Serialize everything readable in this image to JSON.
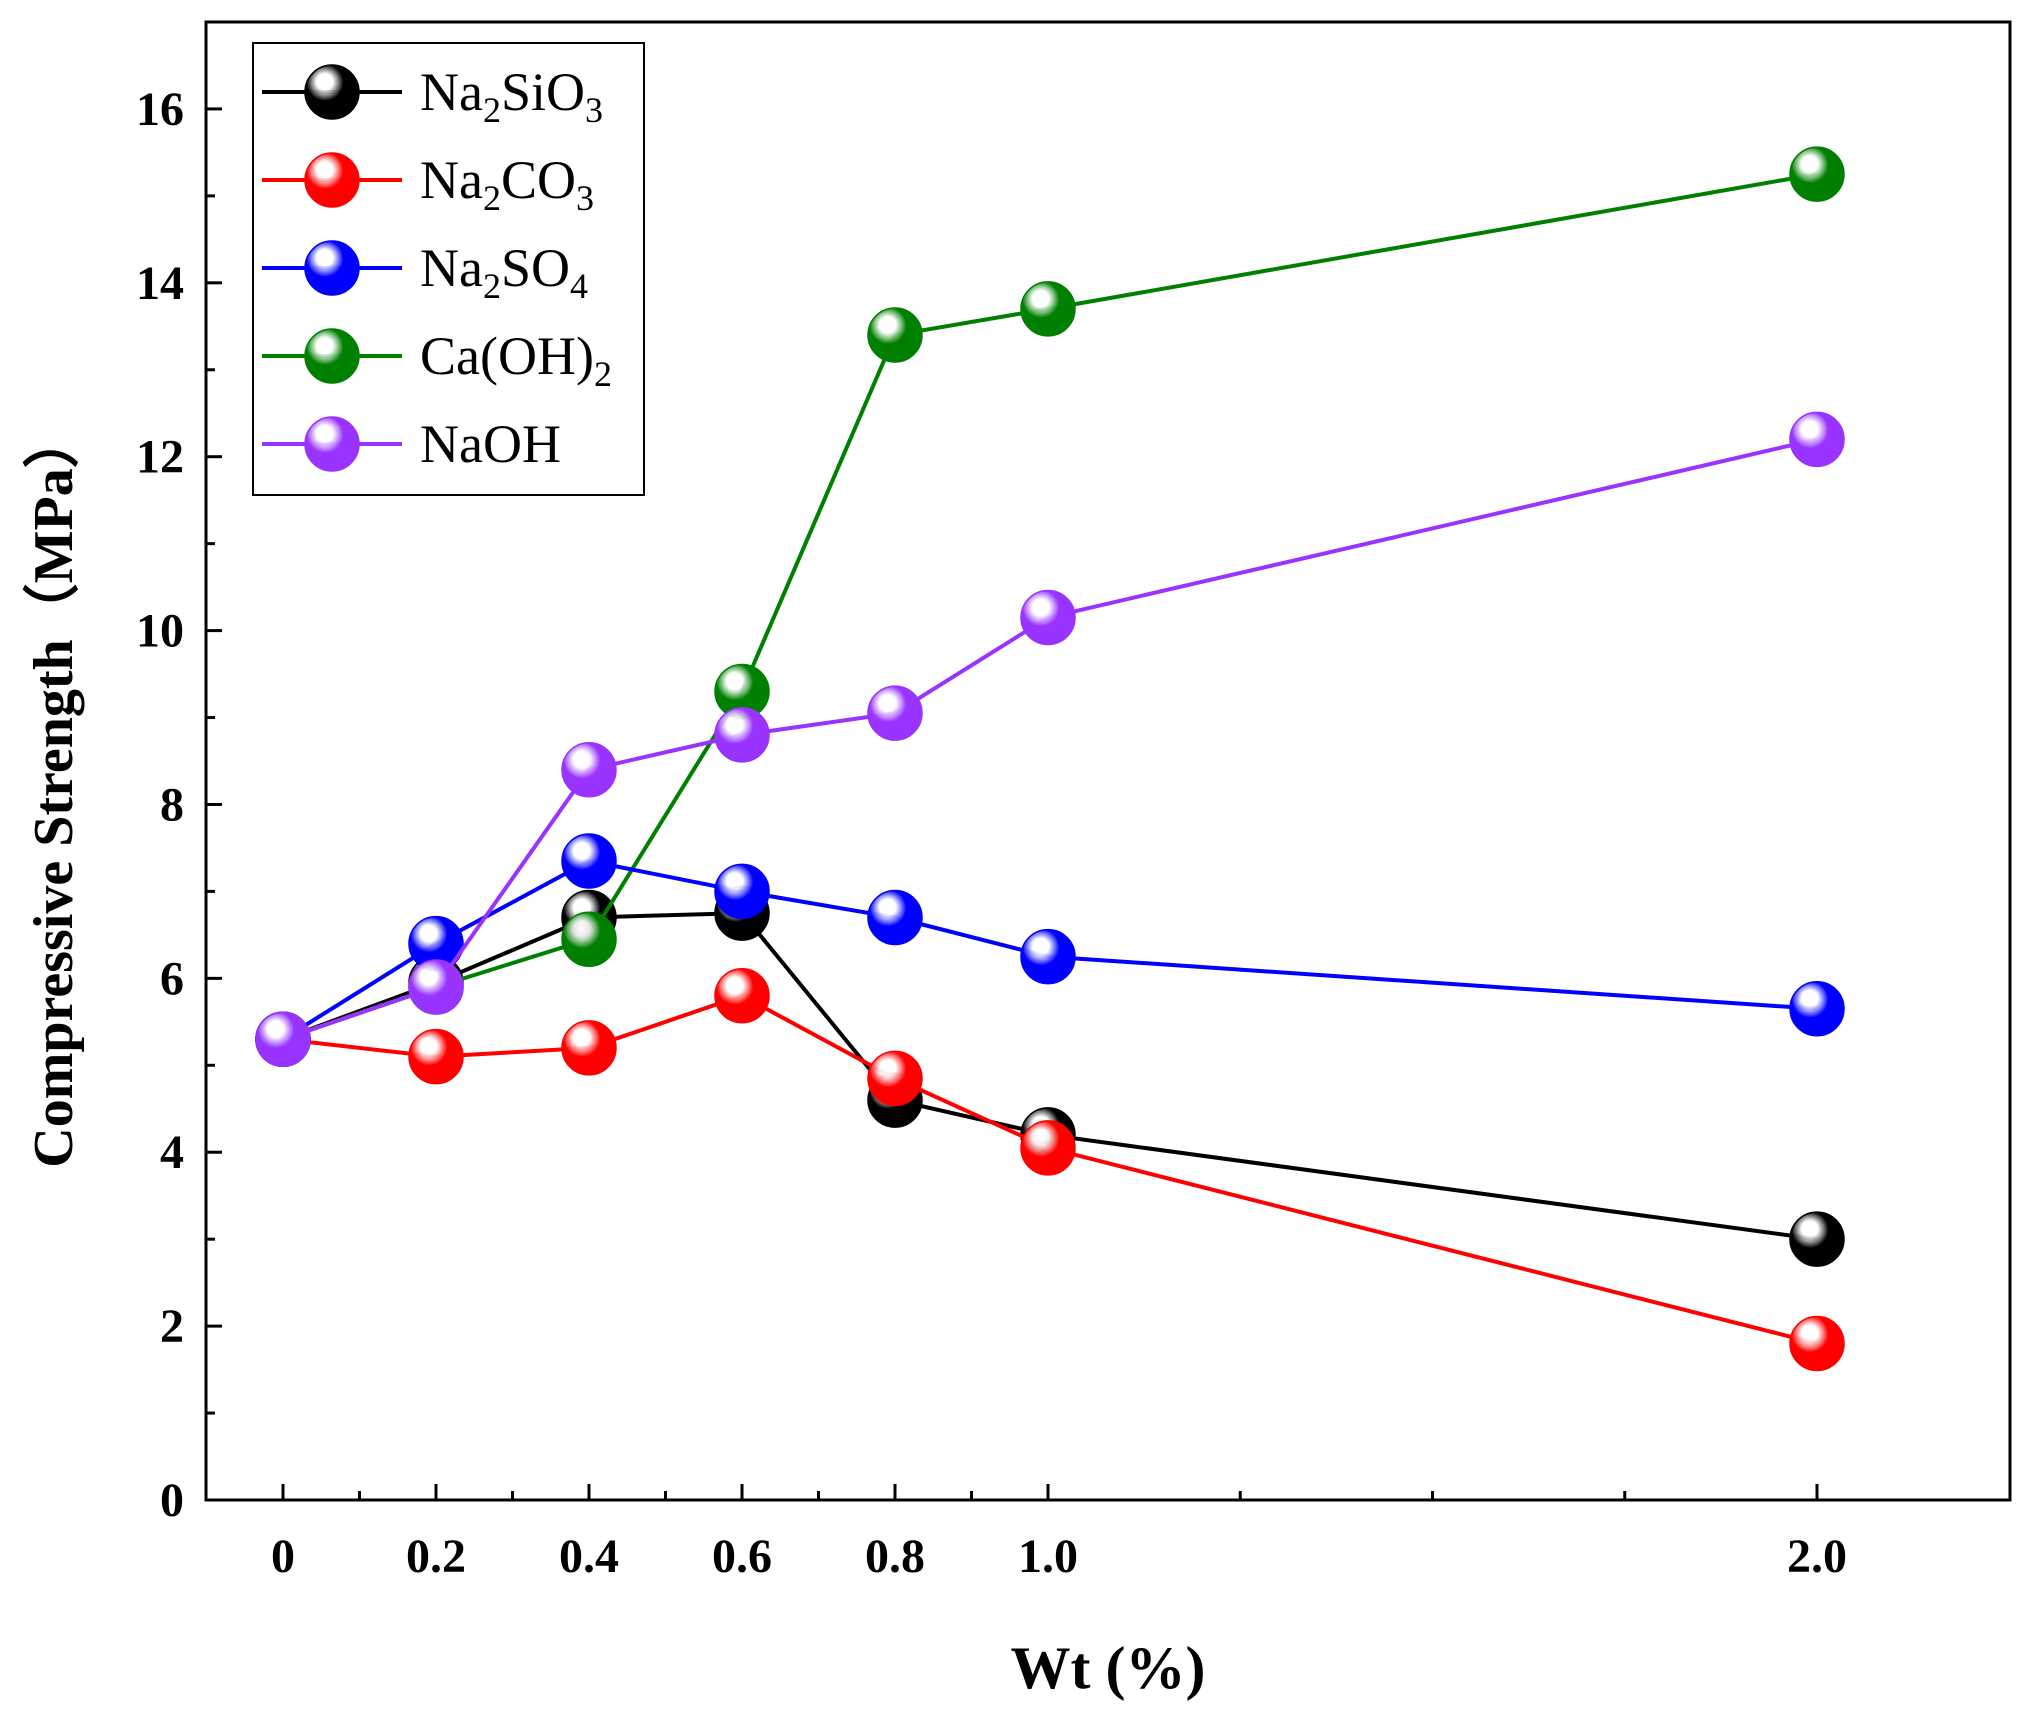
{
  "chart_data": {
    "type": "line",
    "title": "",
    "xlabel": "Wt (%)",
    "ylabel": "Compressive Strength（MPa）",
    "x_tick_labels": [
      "0",
      "0.2",
      "0.4",
      "0.6",
      "0.8",
      "1.0",
      "2.0"
    ],
    "y_ticks": [
      0,
      2,
      4,
      6,
      8,
      10,
      12,
      14,
      16
    ],
    "ylim": [
      0,
      17
    ],
    "legend_position": "top-left",
    "series": [
      {
        "name": "Na₂SiO₃",
        "formula": {
          "parts": [
            {
              "t": "Na"
            },
            {
              "t": "2",
              "sub": true
            },
            {
              "t": "SiO"
            },
            {
              "t": "3",
              "sub": true
            }
          ]
        },
        "color": "#000000",
        "x": [
          0,
          0.2,
          0.4,
          0.6,
          0.8,
          1.0,
          2.0
        ],
        "y": [
          5.3,
          5.95,
          6.7,
          6.75,
          4.6,
          4.2,
          3.0
        ]
      },
      {
        "name": "Na₂CO₃",
        "formula": {
          "parts": [
            {
              "t": "Na"
            },
            {
              "t": "2",
              "sub": true
            },
            {
              "t": "CO"
            },
            {
              "t": "3",
              "sub": true
            }
          ]
        },
        "color": "#ff0000",
        "x": [
          0,
          0.2,
          0.4,
          0.6,
          0.8,
          1.0,
          2.0
        ],
        "y": [
          5.3,
          5.1,
          5.2,
          5.8,
          4.85,
          4.05,
          1.8
        ]
      },
      {
        "name": "Na₂SO₄",
        "formula": {
          "parts": [
            {
              "t": "Na"
            },
            {
              "t": "2",
              "sub": true
            },
            {
              "t": "SO"
            },
            {
              "t": "4",
              "sub": true
            }
          ]
        },
        "color": "#0000ff",
        "x": [
          0,
          0.2,
          0.4,
          0.6,
          0.8,
          1.0,
          2.0
        ],
        "y": [
          5.3,
          6.4,
          7.35,
          7.0,
          6.7,
          6.25,
          5.65
        ]
      },
      {
        "name": "Ca(OH)₂",
        "formula": {
          "parts": [
            {
              "t": "Ca(OH)"
            },
            {
              "t": "2",
              "sub": true
            }
          ]
        },
        "color": "#008000",
        "x": [
          0,
          0.2,
          0.4,
          0.6,
          0.8,
          1.0,
          2.0
        ],
        "y": [
          5.3,
          5.9,
          6.45,
          9.3,
          13.4,
          13.7,
          15.25
        ]
      },
      {
        "name": "NaOH",
        "formula": {
          "parts": [
            {
              "t": "NaOH"
            }
          ]
        },
        "color": "#9933ff",
        "x": [
          0,
          0.2,
          0.4,
          0.6,
          0.8,
          1.0,
          2.0
        ],
        "y": [
          5.3,
          5.9,
          8.4,
          8.8,
          9.05,
          10.15,
          12.2
        ]
      }
    ]
  }
}
